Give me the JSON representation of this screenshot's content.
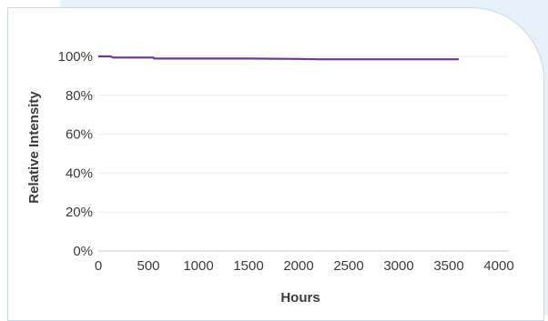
{
  "chart_data": {
    "type": "line",
    "xlabel": "Hours",
    "ylabel": "Relative Intensity",
    "xlim": [
      0,
      4000
    ],
    "ylim": [
      0,
      100
    ],
    "x_ticks": [
      0,
      500,
      1000,
      1500,
      2000,
      2500,
      3000,
      3500,
      4000
    ],
    "y_ticks": [
      0,
      20,
      40,
      60,
      80,
      100
    ],
    "y_tick_labels": [
      "0%",
      "20%",
      "40%",
      "60%",
      "80%",
      "100%"
    ],
    "grid": "horizontal",
    "legend": "none",
    "series": [
      {
        "color": "#6b3a8e",
        "x": [
          0,
          120,
          150,
          550,
          560,
          1000,
          1500,
          2000,
          2200,
          2500,
          3000,
          3600
        ],
        "y": [
          100,
          100,
          99.4,
          99.4,
          98.9,
          98.9,
          98.9,
          98.7,
          98.5,
          98.5,
          98.5,
          98.5
        ]
      }
    ]
  }
}
